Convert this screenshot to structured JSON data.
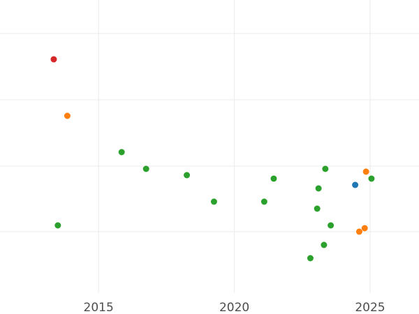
{
  "chart_data": {
    "type": "scatter",
    "title": "",
    "xlabel": "",
    "ylabel": "",
    "xlim": [
      2011.37,
      2026.8
    ],
    "ylim": [
      0,
      450
    ],
    "grid": true,
    "x_ticks": [
      {
        "value": 2015,
        "label": "2015"
      },
      {
        "value": 2020,
        "label": "2020"
      },
      {
        "value": 2025,
        "label": "2025"
      }
    ],
    "y_gridlines": [
      48,
      143,
      238,
      332
    ],
    "colors": {
      "green": "#2ca02c",
      "orange": "#ff7f0e",
      "red": "#d62728",
      "blue": "#1f77b4"
    },
    "points": [
      {
        "x": 2013.35,
        "y": 85,
        "color": "red"
      },
      {
        "x": 2013.85,
        "y": 166,
        "color": "orange"
      },
      {
        "x": 2013.5,
        "y": 323,
        "color": "green"
      },
      {
        "x": 2015.85,
        "y": 218,
        "color": "green"
      },
      {
        "x": 2016.75,
        "y": 242,
        "color": "green"
      },
      {
        "x": 2018.25,
        "y": 251,
        "color": "green"
      },
      {
        "x": 2019.25,
        "y": 289,
        "color": "green"
      },
      {
        "x": 2021.1,
        "y": 289,
        "color": "green"
      },
      {
        "x": 2021.45,
        "y": 256,
        "color": "green"
      },
      {
        "x": 2022.8,
        "y": 370,
        "color": "green"
      },
      {
        "x": 2023.05,
        "y": 299,
        "color": "green"
      },
      {
        "x": 2023.1,
        "y": 270,
        "color": "green"
      },
      {
        "x": 2023.3,
        "y": 351,
        "color": "green"
      },
      {
        "x": 2023.35,
        "y": 242,
        "color": "green"
      },
      {
        "x": 2023.55,
        "y": 323,
        "color": "green"
      },
      {
        "x": 2024.45,
        "y": 265,
        "color": "blue"
      },
      {
        "x": 2024.6,
        "y": 332,
        "color": "orange"
      },
      {
        "x": 2024.8,
        "y": 327,
        "color": "orange"
      },
      {
        "x": 2024.85,
        "y": 246,
        "color": "orange"
      },
      {
        "x": 2025.05,
        "y": 256,
        "color": "green"
      }
    ]
  }
}
